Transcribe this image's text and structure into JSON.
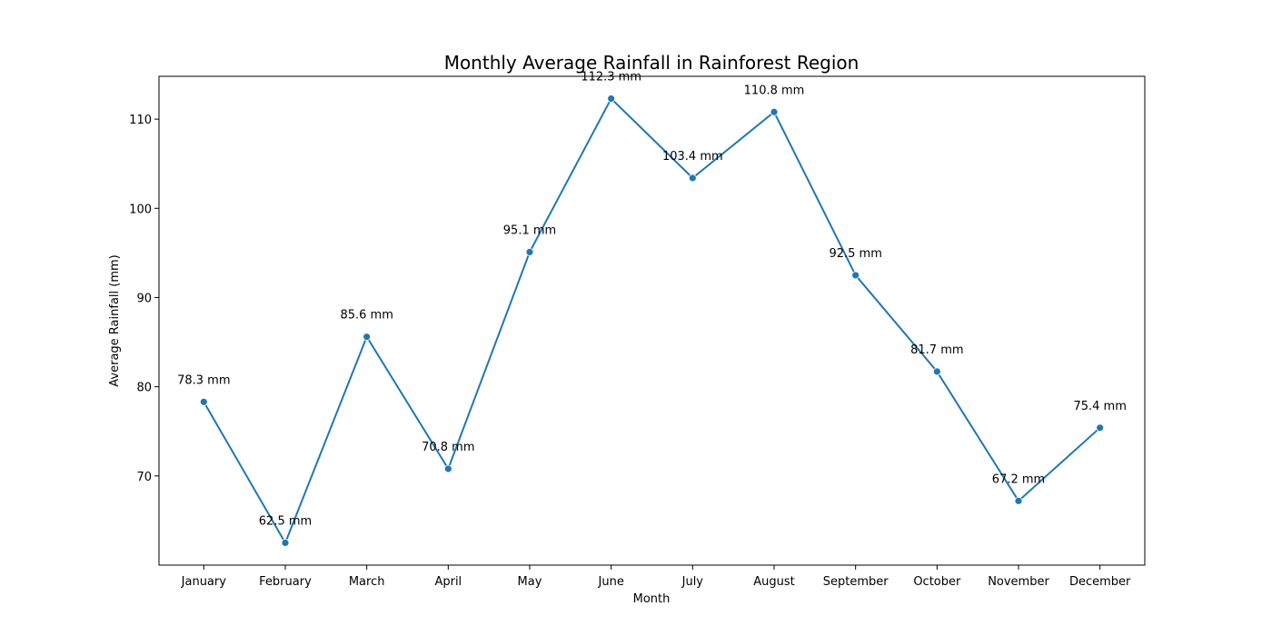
{
  "chart_data": {
    "type": "line",
    "title": "Monthly Average Rainfall in Rainforest Region",
    "xlabel": "Month",
    "ylabel": "Average Rainfall (mm)",
    "categories": [
      "January",
      "February",
      "March",
      "April",
      "May",
      "June",
      "July",
      "August",
      "September",
      "October",
      "November",
      "December"
    ],
    "series": [
      {
        "values": [
          78.3,
          62.5,
          85.6,
          70.8,
          95.1,
          112.3,
          103.4,
          110.8,
          92.5,
          81.7,
          67.2,
          75.4
        ],
        "labels": [
          "78.3 mm",
          "62.5 mm",
          "85.6 mm",
          "70.8 mm",
          "95.1 mm",
          "112.3 mm",
          "103.4 mm",
          "110.8 mm",
          "92.5 mm",
          "81.7 mm",
          "67.2 mm",
          "75.4 mm"
        ],
        "color": "#1f77b4"
      }
    ],
    "ylim": [
      60.0,
      114.8
    ],
    "yticks": [
      70,
      80,
      90,
      100,
      110
    ],
    "grid": false,
    "legend": "none"
  }
}
